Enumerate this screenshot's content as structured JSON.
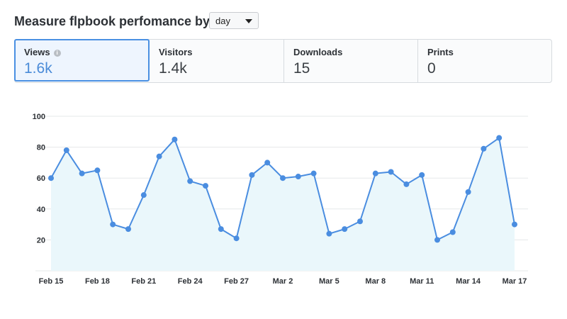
{
  "header": {
    "title": "Measure flpbook perfomance by",
    "period": {
      "selected": "day"
    }
  },
  "metrics": [
    {
      "label": "Views",
      "value": "1.6k",
      "active": true,
      "icon": "info-icon"
    },
    {
      "label": "Visitors",
      "value": "1.4k",
      "active": false
    },
    {
      "label": "Downloads",
      "value": "15",
      "active": false
    },
    {
      "label": "Prints",
      "value": "0",
      "active": false
    }
  ],
  "colors": {
    "accent": "#4a90e2",
    "line": "#4a8de0",
    "area": "#eaf7fb",
    "grid": "#e6e8ea"
  },
  "chart_data": {
    "type": "area",
    "grid": true,
    "ylim": [
      0,
      100
    ],
    "yticks": [
      20,
      40,
      60,
      80,
      100
    ],
    "x": [
      "Feb 15",
      "Feb 16",
      "Feb 17",
      "Feb 18",
      "Feb 19",
      "Feb 20",
      "Feb 21",
      "Feb 22",
      "Feb 23",
      "Feb 24",
      "Feb 25",
      "Feb 26",
      "Feb 27",
      "Feb 28",
      "Mar 1",
      "Mar 2",
      "Mar 3",
      "Mar 4",
      "Mar 5",
      "Mar 6",
      "Mar 7",
      "Mar 8",
      "Mar 9",
      "Mar 10",
      "Mar 11",
      "Mar 12",
      "Mar 13",
      "Mar 14",
      "Mar 15",
      "Mar 16",
      "Mar 17"
    ],
    "xtick_labels": [
      "Feb 15",
      "Feb 18",
      "Feb 21",
      "Feb 24",
      "Feb 27",
      "Mar 2",
      "Mar 5",
      "Mar 8",
      "Mar 11",
      "Mar 14",
      "Mar 17"
    ],
    "series": [
      {
        "values": [
          60,
          78,
          63,
          65,
          30,
          27,
          49,
          74,
          85,
          58,
          55,
          27,
          21,
          62,
          70,
          60,
          61,
          63,
          24,
          27,
          32,
          63,
          64,
          56,
          62,
          20,
          25,
          51,
          79,
          86,
          30
        ]
      }
    ]
  }
}
